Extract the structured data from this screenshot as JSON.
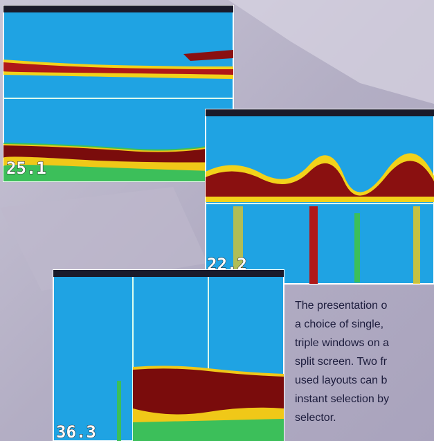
{
  "screens": [
    {
      "depth": "25.1"
    },
    {
      "depth": "22.2"
    },
    {
      "depth": "36.3"
    }
  ],
  "caption": {
    "lines": [
      "The presentation o",
      "a choice of single,",
      "triple windows on a",
      "split screen. Two fr",
      "used layouts can b",
      "instant selection by",
      "selector."
    ]
  }
}
